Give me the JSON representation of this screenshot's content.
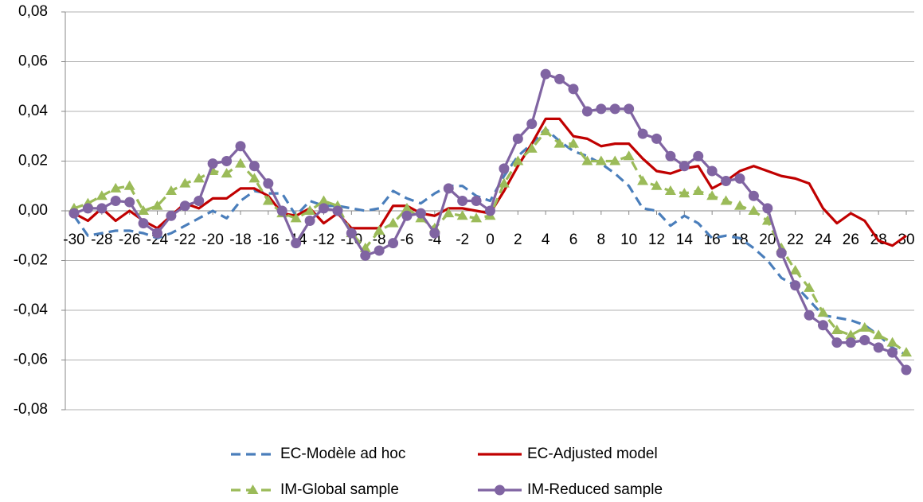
{
  "chart_data": {
    "type": "line",
    "x": [
      -30,
      -29,
      -28,
      -27,
      -26,
      -25,
      -24,
      -23,
      -22,
      -21,
      -20,
      -19,
      -18,
      -17,
      -16,
      -15,
      -14,
      -13,
      -12,
      -11,
      -10,
      -9,
      -8,
      -7,
      -6,
      -5,
      -4,
      -3,
      -2,
      -1,
      0,
      1,
      2,
      3,
      4,
      5,
      6,
      7,
      8,
      9,
      10,
      11,
      12,
      13,
      14,
      15,
      16,
      17,
      18,
      19,
      20,
      21,
      22,
      23,
      24,
      25,
      26,
      27,
      28,
      29,
      30
    ],
    "xlim": [
      -30,
      30
    ],
    "xticks": [
      -30,
      -28,
      -26,
      -24,
      -22,
      -20,
      -18,
      -16,
      -14,
      -12,
      -10,
      -8,
      -6,
      -4,
      -2,
      0,
      2,
      4,
      6,
      8,
      10,
      12,
      14,
      16,
      18,
      20,
      22,
      24,
      26,
      28,
      30
    ],
    "ylim": [
      -0.08,
      0.08
    ],
    "yticks": [
      {
        "value": -0.08,
        "label": "-0,08"
      },
      {
        "value": -0.06,
        "label": "-0,06"
      },
      {
        "value": -0.04,
        "label": "-0,04"
      },
      {
        "value": -0.02,
        "label": "-0,02"
      },
      {
        "value": 0,
        "label": "0,00"
      },
      {
        "value": 0.02,
        "label": "0,02"
      },
      {
        "value": 0.04,
        "label": "0,04"
      },
      {
        "value": 0.06,
        "label": "0,06"
      },
      {
        "value": 0.08,
        "label": "0,08"
      }
    ],
    "grid": true,
    "legend": "bottom",
    "series": [
      {
        "name": "EC-Modèle ad hoc",
        "color": "#4a7ebb",
        "dash": "dashed",
        "marker": "none",
        "values": [
          -0.002,
          -0.01,
          -0.009,
          -0.008,
          -0.008,
          -0.009,
          -0.011,
          -0.009,
          -0.006,
          -0.003,
          0.0,
          -0.003,
          0.004,
          0.008,
          0.007,
          0.007,
          -0.002,
          0.004,
          0.002,
          0.002,
          0.001,
          0.0,
          0.001,
          0.008,
          0.005,
          0.003,
          0.007,
          0.01,
          0.01,
          0.006,
          0.004,
          0.014,
          0.022,
          0.027,
          0.033,
          0.028,
          0.024,
          0.022,
          0.019,
          0.015,
          0.01,
          0.001,
          0.0,
          -0.006,
          -0.002,
          -0.005,
          -0.011,
          -0.01,
          -0.011,
          -0.015,
          -0.02,
          -0.027,
          -0.03,
          -0.036,
          -0.042,
          -0.043,
          -0.044,
          -0.046,
          -0.05,
          -0.055,
          -0.058
        ]
      },
      {
        "name": "EC-Adjusted model",
        "color": "#c00000",
        "dash": "solid",
        "marker": "none",
        "values": [
          -0.001,
          -0.004,
          0.001,
          -0.004,
          0.0,
          -0.004,
          -0.007,
          -0.002,
          0.003,
          0.001,
          0.005,
          0.005,
          0.009,
          0.009,
          0.006,
          -0.001,
          -0.002,
          0.001,
          -0.005,
          -0.001,
          -0.007,
          -0.007,
          -0.007,
          0.002,
          0.002,
          -0.001,
          -0.002,
          0.001,
          0.001,
          0.0,
          -0.001,
          0.008,
          0.018,
          0.027,
          0.037,
          0.037,
          0.03,
          0.029,
          0.026,
          0.027,
          0.027,
          0.021,
          0.016,
          0.015,
          0.017,
          0.018,
          0.009,
          0.012,
          0.016,
          0.018,
          0.016,
          0.014,
          0.013,
          0.011,
          0.001,
          -0.005,
          -0.001,
          -0.004,
          -0.012,
          -0.014,
          -0.01
        ]
      },
      {
        "name": "IM-Global sample",
        "color": "#9bbb59",
        "dash": "dashed",
        "marker": "triangle",
        "values": [
          0.001,
          0.003,
          0.006,
          0.009,
          0.01,
          0.0,
          0.002,
          0.008,
          0.011,
          0.013,
          0.016,
          0.015,
          0.019,
          0.013,
          0.004,
          -0.001,
          -0.003,
          0.0,
          0.004,
          0.002,
          -0.009,
          -0.015,
          -0.008,
          -0.005,
          0.001,
          -0.003,
          -0.007,
          -0.001,
          -0.002,
          -0.003,
          -0.002,
          0.011,
          0.02,
          0.025,
          0.032,
          0.027,
          0.027,
          0.02,
          0.02,
          0.02,
          0.022,
          0.012,
          0.01,
          0.008,
          0.007,
          0.008,
          0.006,
          0.004,
          0.002,
          0.0,
          -0.004,
          -0.015,
          -0.024,
          -0.031,
          -0.041,
          -0.048,
          -0.05,
          -0.047,
          -0.05,
          -0.053,
          -0.057
        ]
      },
      {
        "name": "IM-Reduced sample",
        "color": "#8064a2",
        "dash": "solid",
        "marker": "circle",
        "values": [
          -0.001,
          0.001,
          0.001,
          0.004,
          0.0035,
          -0.005,
          -0.009,
          -0.002,
          0.002,
          0.004,
          0.019,
          0.02,
          0.026,
          0.018,
          0.011,
          0.0,
          -0.013,
          -0.004,
          0.001,
          0.0,
          -0.009,
          -0.018,
          -0.016,
          -0.013,
          -0.002,
          -0.001,
          -0.009,
          0.009,
          0.004,
          0.004,
          0.0,
          0.017,
          0.029,
          0.035,
          0.055,
          0.053,
          0.049,
          0.04,
          0.041,
          0.041,
          0.041,
          0.031,
          0.029,
          0.022,
          0.018,
          0.022,
          0.016,
          0.012,
          0.013,
          0.006,
          0.001,
          -0.017,
          -0.03,
          -0.042,
          -0.046,
          -0.053,
          -0.053,
          -0.052,
          -0.055,
          -0.057,
          -0.064
        ]
      }
    ]
  }
}
